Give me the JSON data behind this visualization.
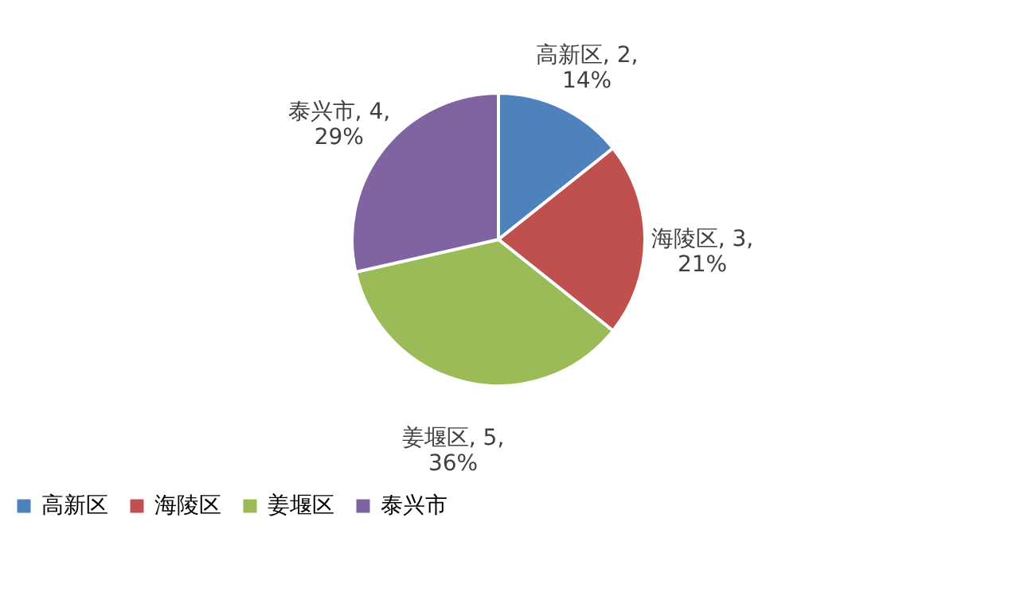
{
  "chart_data": {
    "type": "pie",
    "categories": [
      "高新区",
      "海陵区",
      "姜堰区",
      "泰兴市"
    ],
    "values": [
      2,
      3,
      5,
      4
    ],
    "colors": [
      "#4f81bd",
      "#c0504d",
      "#9bbb59",
      "#8064a2"
    ],
    "value_labels": [
      "高新区, 2,\n14%",
      "海陵区, 3,\n21%",
      "姜堰区, 5,\n36%",
      "泰兴市, 4,\n29%"
    ],
    "legend": "bottom"
  }
}
